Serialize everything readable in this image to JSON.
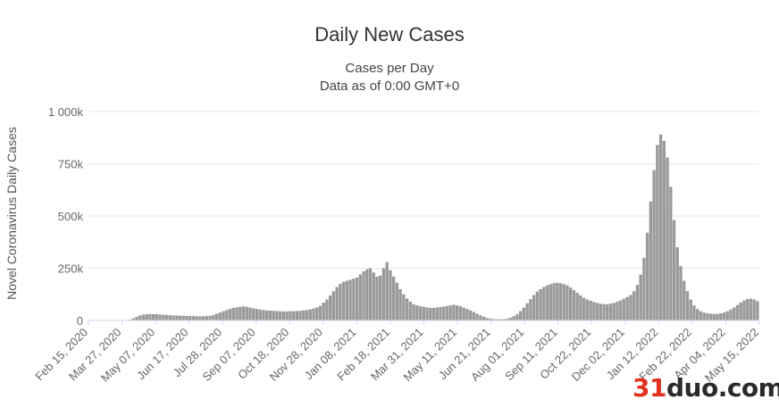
{
  "chart_data": {
    "type": "bar",
    "title": "Daily New Cases",
    "subtitle_lines": [
      "Cases per Day",
      "Data as of 0:00 GMT+0"
    ],
    "ylabel": "Novel Coronavirus Daily Cases",
    "xlabel": "",
    "ylim": [
      0,
      1000000
    ],
    "y_ticks": [
      {
        "value": 0,
        "label": "0"
      },
      {
        "value": 250000,
        "label": "250k"
      },
      {
        "value": 500000,
        "label": "500k"
      },
      {
        "value": 750000,
        "label": "750k"
      },
      {
        "value": 1000000,
        "label": "1 000k"
      }
    ],
    "x_tick_labels": [
      "Feb 15, 2020",
      "Mar 27, 2020",
      "May 07, 2020",
      "Jun 17, 2020",
      "Jul 28, 2020",
      "Sep 07, 2020",
      "Oct 18, 2020",
      "Nov 28, 2020",
      "Jan 08, 2021",
      "Feb 18, 2021",
      "Mar 31, 2021",
      "May 11, 2021",
      "Jun 21, 2021",
      "Aug 01, 2021",
      "Sep 11, 2021",
      "Oct 22, 2021",
      "Dec 02, 2021",
      "Jan 12, 2022",
      "Feb 22, 2022",
      "Apr 04, 2022",
      "May 15, 2022"
    ],
    "grid": true,
    "legend": "none",
    "bar_color": "#9a9a9a",
    "series": [
      {
        "x_start": "Feb 15, 2020",
        "x_end": "Jun 05, 2022",
        "x_step_days": 4,
        "values": [
          0,
          0,
          0,
          0,
          0,
          0,
          0,
          0,
          0,
          0,
          0,
          1000,
          4000,
          10000,
          18000,
          24000,
          28000,
          30000,
          31000,
          30000,
          30000,
          28000,
          27000,
          26000,
          25000,
          24000,
          24000,
          23000,
          22000,
          22000,
          21000,
          21000,
          20000,
          20000,
          20000,
          21000,
          22000,
          26000,
          32000,
          38000,
          44000,
          50000,
          55000,
          60000,
          63000,
          65000,
          67000,
          65000,
          62000,
          58000,
          55000,
          52000,
          50000,
          48000,
          47000,
          46000,
          45000,
          44000,
          43000,
          43000,
          44000,
          44000,
          45000,
          46000,
          48000,
          50000,
          53000,
          57000,
          62000,
          70000,
          85000,
          100000,
          120000,
          140000,
          160000,
          175000,
          185000,
          190000,
          195000,
          200000,
          205000,
          220000,
          235000,
          245000,
          250000,
          230000,
          210000,
          215000,
          250000,
          280000,
          240000,
          210000,
          180000,
          150000,
          125000,
          105000,
          90000,
          78000,
          72000,
          68000,
          65000,
          62000,
          60000,
          60000,
          62000,
          64000,
          66000,
          69000,
          72000,
          75000,
          72000,
          68000,
          62000,
          55000,
          48000,
          40000,
          32000,
          24000,
          18000,
          12000,
          8000,
          6000,
          5000,
          5000,
          6000,
          8000,
          13000,
          20000,
          30000,
          45000,
          62000,
          82000,
          102000,
          122000,
          138000,
          150000,
          160000,
          168000,
          174000,
          178000,
          180000,
          178000,
          174000,
          168000,
          158000,
          145000,
          132000,
          120000,
          108000,
          100000,
          94000,
          88000,
          84000,
          80000,
          78000,
          78000,
          80000,
          84000,
          90000,
          96000,
          104000,
          112000,
          122000,
          140000,
          170000,
          220000,
          300000,
          420000,
          570000,
          720000,
          840000,
          890000,
          860000,
          780000,
          640000,
          480000,
          350000,
          260000,
          190000,
          140000,
          100000,
          72000,
          55000,
          44000,
          38000,
          34000,
          32000,
          31000,
          32000,
          34000,
          38000,
          44000,
          52000,
          62000,
          74000,
          86000,
          96000,
          102000,
          104000,
          100000,
          92000
        ]
      }
    ]
  },
  "watermark": {
    "part1": "31",
    "part2": "duo",
    "part3": ".com"
  }
}
